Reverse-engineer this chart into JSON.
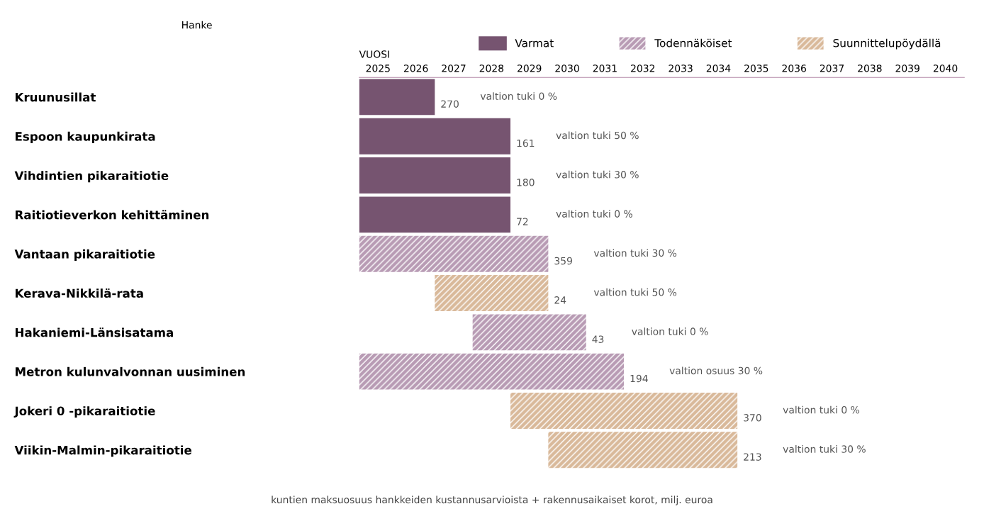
{
  "chart_data": {
    "type": "bar",
    "orientation": "horizontal",
    "xlabel": "VUOSI",
    "categories": [
      "Kruunusillat",
      "Espoon kaupunkirata",
      "Vihdintien pikaraitiotie",
      "Raitiotieverkon kehittäminen",
      "Vantaan pikaraitiotie",
      "Kerava-Nikkilä-rata",
      "Hakaniemi-Länsisatama",
      "Metron kulunvalvonnan uusiminen",
      "Jokeri 0 -pikaraitiotie",
      "Viikin-Malmin-pikaraitiotie"
    ],
    "series": [
      {
        "name": "Varmat",
        "color": "#765470",
        "base": [
          2024.5,
          2024.5,
          2024.5,
          2024.5,
          null,
          null,
          null,
          null,
          null,
          null
        ],
        "values": [
          2,
          4,
          4,
          4,
          null,
          null,
          null,
          null,
          null,
          null
        ]
      },
      {
        "name": "Todennäköiset",
        "color": "#b89bb4",
        "base": [
          null,
          null,
          null,
          null,
          2024.5,
          null,
          2027.5,
          2024.5,
          null,
          null
        ],
        "values": [
          null,
          null,
          null,
          null,
          5,
          null,
          3,
          7,
          null,
          null
        ]
      },
      {
        "name": "Suunnittelupöydällä",
        "color": "#d9b99a",
        "base": [
          null,
          null,
          null,
          null,
          null,
          2026.5,
          null,
          null,
          2028.5,
          2029.5
        ],
        "values": [
          null,
          null,
          null,
          null,
          null,
          3,
          null,
          null,
          6,
          5
        ]
      }
    ],
    "xlim": [
      2024.5,
      2040.5
    ],
    "xticks": [
      2025,
      2026,
      2027,
      2028,
      2029,
      2030,
      2031,
      2032,
      2033,
      2034,
      2035,
      2036,
      2037,
      2038,
      2039,
      2040
    ],
    "legend": "top",
    "annotations": [
      "Hanke",
      "kuntien maksuosuus hankkeiden kustannusarvioista + rakennusaikaiset korot, milj. euroa",
      "270",
      "valtion tuki 0 %",
      "161",
      "valtion tuki 50 %",
      "180",
      "valtion tuki 30 %",
      "72",
      "valtion tuki 0 %",
      "359",
      "valtion tuki 30 %",
      "24",
      "valtion tuki 50 %",
      "43",
      "valtion tuki 0 %",
      "194",
      "valtion osuus 30 %",
      "370",
      "valtion tuki 0 %",
      "213",
      "valtion tuki 30 %"
    ]
  }
}
